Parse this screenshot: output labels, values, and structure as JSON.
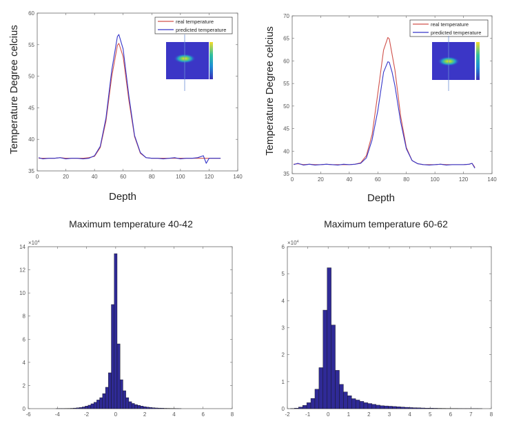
{
  "chart_data": [
    {
      "type": "line",
      "xlabel": "Depth",
      "ylabel": "Temperature Degree celcius",
      "xlim": [
        0,
        140
      ],
      "ylim": [
        35,
        60
      ],
      "xticks": [
        "0",
        "20",
        "40",
        "60",
        "80",
        "100",
        "120",
        "140"
      ],
      "yticks": [
        "35",
        "40",
        "45",
        "50",
        "55",
        "60"
      ],
      "legend": "top-right",
      "series": [
        {
          "name": "real temperature",
          "color": "#d0504a",
          "x": [
            1,
            4,
            8,
            12,
            16,
            20,
            24,
            28,
            32,
            36,
            40,
            44,
            48,
            52,
            56,
            57,
            60,
            64,
            68,
            72,
            76,
            80,
            84,
            88,
            92,
            96,
            100,
            104,
            108,
            112,
            116,
            118,
            120,
            124,
            128
          ],
          "y": [
            37.0,
            37.0,
            37.0,
            37.0,
            37.1,
            37.0,
            37.0,
            37.0,
            37.0,
            37.1,
            37.3,
            38.7,
            42.9,
            49.9,
            54.9,
            55.2,
            53.1,
            46.2,
            40.4,
            37.8,
            37.1,
            37.0,
            37.0,
            37.0,
            37.0,
            37.0,
            37.0,
            37.0,
            37.0,
            37.0,
            37.0,
            37.0,
            37.0,
            37.0,
            37.0
          ]
        },
        {
          "name": "predicted temperature",
          "color": "#3434c8",
          "x": [
            1,
            4,
            8,
            12,
            16,
            20,
            24,
            28,
            32,
            36,
            40,
            44,
            48,
            52,
            56,
            57,
            60,
            64,
            68,
            72,
            76,
            80,
            84,
            88,
            92,
            96,
            100,
            104,
            108,
            112,
            116,
            118,
            120,
            124,
            128
          ],
          "y": [
            37.1,
            36.9,
            37.0,
            37.0,
            37.1,
            36.9,
            37.0,
            37.0,
            36.9,
            37.0,
            37.4,
            38.9,
            43.4,
            50.9,
            56.3,
            56.6,
            54.3,
            46.9,
            40.6,
            37.9,
            37.1,
            37.0,
            37.0,
            36.9,
            37.0,
            37.1,
            36.9,
            37.0,
            37.0,
            37.1,
            37.4,
            36.2,
            37.0,
            37.0,
            37.0
          ]
        }
      ]
    },
    {
      "type": "line",
      "xlabel": "Depth",
      "ylabel": "Temperature Degree celcius",
      "xlim": [
        0,
        140
      ],
      "ylim": [
        35,
        70
      ],
      "xticks": [
        "0",
        "20",
        "40",
        "60",
        "80",
        "100",
        "120",
        "140"
      ],
      "yticks": [
        "35",
        "40",
        "45",
        "50",
        "55",
        "60",
        "65",
        "70"
      ],
      "legend": "top-right",
      "series": [
        {
          "name": "real temperature",
          "color": "#d0504a",
          "x": [
            1,
            4,
            8,
            12,
            16,
            20,
            24,
            28,
            32,
            36,
            40,
            44,
            48,
            52,
            56,
            60,
            64,
            67,
            68,
            72,
            76,
            80,
            84,
            88,
            92,
            96,
            100,
            104,
            108,
            112,
            116,
            120,
            124,
            126,
            128
          ],
          "y": [
            37.1,
            37.2,
            37.0,
            37.1,
            37.0,
            37.0,
            37.1,
            37.0,
            37.0,
            37.0,
            37.0,
            37.1,
            37.4,
            39.0,
            43.7,
            52.8,
            62.4,
            65.2,
            64.9,
            58.0,
            47.8,
            40.8,
            37.9,
            37.2,
            37.0,
            37.0,
            37.0,
            37.1,
            37.0,
            37.0,
            37.0,
            37.0,
            37.1,
            37.3,
            36.4
          ]
        },
        {
          "name": "predicted temperature",
          "color": "#3434c8",
          "x": [
            1,
            4,
            8,
            12,
            16,
            20,
            24,
            28,
            32,
            36,
            40,
            44,
            48,
            52,
            56,
            60,
            64,
            67,
            68,
            70,
            72,
            76,
            80,
            84,
            88,
            92,
            96,
            100,
            104,
            108,
            112,
            116,
            120,
            124,
            126,
            128
          ],
          "y": [
            37.0,
            37.3,
            36.9,
            37.1,
            36.9,
            37.0,
            37.1,
            37.0,
            36.9,
            37.1,
            37.0,
            37.1,
            37.3,
            38.5,
            42.5,
            49.0,
            57.5,
            59.8,
            59.7,
            57.5,
            54.5,
            46.5,
            40.5,
            37.9,
            37.2,
            37.0,
            36.9,
            37.0,
            37.1,
            36.9,
            37.0,
            37.0,
            37.0,
            37.1,
            37.3,
            36.2
          ]
        }
      ]
    },
    {
      "type": "bar",
      "title": "Maximum temperature 40-42",
      "ymultiplier": "×10",
      "ymultiplier_exp": "4",
      "xlim": [
        -6,
        8
      ],
      "ylim": [
        0,
        14
      ],
      "xticks": [
        "-6",
        "-4",
        "-2",
        "0",
        "2",
        "4",
        "6",
        "8"
      ],
      "yticks": [
        "0",
        "2",
        "4",
        "6",
        "8",
        "10",
        "12",
        "14"
      ],
      "bin_width": 0.2,
      "color": "#2f2a96",
      "x": [
        -4.0,
        -3.8,
        -3.6,
        -3.4,
        -3.2,
        -3.0,
        -2.8,
        -2.6,
        -2.4,
        -2.2,
        -2.0,
        -1.8,
        -1.6,
        -1.4,
        -1.2,
        -1.0,
        -0.8,
        -0.6,
        -0.4,
        -0.2,
        0.0,
        0.2,
        0.4,
        0.6,
        0.8,
        1.0,
        1.2,
        1.4,
        1.6,
        1.8,
        2.0,
        2.2,
        2.4,
        2.6,
        2.8,
        3.0,
        3.2,
        3.4,
        3.6,
        3.8,
        4.0,
        4.2,
        4.4
      ],
      "values": [
        0.005,
        0.01,
        0.01,
        0.015,
        0.02,
        0.03,
        0.05,
        0.07,
        0.1,
        0.15,
        0.22,
        0.3,
        0.42,
        0.55,
        0.75,
        0.95,
        1.3,
        1.85,
        3.1,
        9.0,
        13.4,
        5.6,
        2.5,
        1.55,
        0.95,
        0.6,
        0.45,
        0.35,
        0.28,
        0.22,
        0.17,
        0.13,
        0.1,
        0.08,
        0.06,
        0.05,
        0.04,
        0.03,
        0.025,
        0.02,
        0.015,
        0.01,
        0.005
      ]
    },
    {
      "type": "bar",
      "title": "Maximum temperature 60-62",
      "ymultiplier": "×10",
      "ymultiplier_exp": "4",
      "xlim": [
        -2,
        8
      ],
      "ylim": [
        0,
        6
      ],
      "xticks": [
        "-2",
        "-1",
        "0",
        "1",
        "2",
        "3",
        "4",
        "5",
        "6",
        "7",
        "8"
      ],
      "yticks": [
        "0",
        "1",
        "2",
        "3",
        "4",
        "5",
        "6"
      ],
      "bin_width": 0.2,
      "color": "#2f2a96",
      "x": [
        -1.75,
        -1.55,
        -1.35,
        -1.15,
        -0.95,
        -0.75,
        -0.55,
        -0.35,
        -0.15,
        0.05,
        0.25,
        0.45,
        0.65,
        0.85,
        1.05,
        1.25,
        1.45,
        1.65,
        1.85,
        2.05,
        2.25,
        2.45,
        2.65,
        2.85,
        3.05,
        3.25,
        3.45,
        3.65,
        3.85,
        4.05,
        4.25,
        4.45,
        4.65,
        4.85,
        5.05,
        5.25,
        5.45,
        5.65,
        5.85,
        6.05,
        6.25,
        6.45,
        6.65,
        6.85,
        7.05,
        7.25,
        7.45
      ],
      "values": [
        0.005,
        0.02,
        0.06,
        0.12,
        0.22,
        0.38,
        0.72,
        1.52,
        3.65,
        5.22,
        3.1,
        1.42,
        0.9,
        0.62,
        0.48,
        0.37,
        0.32,
        0.27,
        0.22,
        0.19,
        0.16,
        0.13,
        0.11,
        0.1,
        0.09,
        0.08,
        0.07,
        0.06,
        0.05,
        0.04,
        0.035,
        0.03,
        0.025,
        0.02,
        0.018,
        0.015,
        0.012,
        0.01,
        0.008,
        0.007,
        0.006,
        0.005,
        0.004,
        0.004,
        0.003,
        0.003,
        0.002
      ]
    }
  ]
}
